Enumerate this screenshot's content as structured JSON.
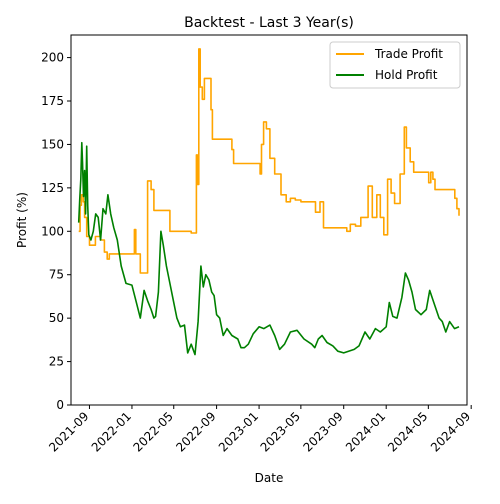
{
  "chart_data": {
    "type": "line",
    "title": "Backtest - Last 3 Year(s)",
    "xlabel": "Date",
    "ylabel": "Profit (%)",
    "x_type": "date",
    "xlim": [
      "2021-07-10",
      "2024-08-20"
    ],
    "ylim": [
      0,
      213
    ],
    "x_ticks": [
      "2021-09",
      "2022-01",
      "2022-05",
      "2022-09",
      "2023-01",
      "2023-05",
      "2023-09",
      "2024-01",
      "2024-05",
      "2024-09"
    ],
    "y_ticks": [
      0,
      25,
      50,
      75,
      100,
      125,
      150,
      175,
      200
    ],
    "grid": false,
    "legend_position": "top-right",
    "series": [
      {
        "name": "Trade Profit",
        "color": "#ffa500",
        "step": true,
        "points": [
          [
            "2021-08-01",
            100
          ],
          [
            "2021-08-05",
            115
          ],
          [
            "2021-08-09",
            121
          ],
          [
            "2021-08-14",
            117
          ],
          [
            "2021-08-18",
            108
          ],
          [
            "2021-08-24",
            97
          ],
          [
            "2021-09-01",
            92
          ],
          [
            "2021-09-18",
            97
          ],
          [
            "2021-10-02",
            95
          ],
          [
            "2021-10-14",
            88
          ],
          [
            "2021-10-22",
            84
          ],
          [
            "2021-10-28",
            87
          ],
          [
            "2021-11-15",
            87
          ],
          [
            "2021-12-10",
            87
          ],
          [
            "2022-01-01",
            87
          ],
          [
            "2022-01-08",
            101
          ],
          [
            "2022-01-12",
            87
          ],
          [
            "2022-01-25",
            76
          ],
          [
            "2022-02-15",
            129
          ],
          [
            "2022-02-25",
            124
          ],
          [
            "2022-03-05",
            112
          ],
          [
            "2022-04-10",
            112
          ],
          [
            "2022-04-20",
            100
          ],
          [
            "2022-06-20",
            99
          ],
          [
            "2022-07-05",
            144
          ],
          [
            "2022-07-08",
            127
          ],
          [
            "2022-07-12",
            205
          ],
          [
            "2022-07-16",
            183
          ],
          [
            "2022-07-22",
            176
          ],
          [
            "2022-07-28",
            188
          ],
          [
            "2022-08-16",
            170
          ],
          [
            "2022-08-20",
            153
          ],
          [
            "2022-10-15",
            147
          ],
          [
            "2022-10-20",
            139
          ],
          [
            "2023-01-01",
            139
          ],
          [
            "2023-01-04",
            133
          ],
          [
            "2023-01-08",
            150
          ],
          [
            "2023-01-14",
            163
          ],
          [
            "2023-01-22",
            159
          ],
          [
            "2023-02-01",
            142
          ],
          [
            "2023-02-15",
            133
          ],
          [
            "2023-03-05",
            121
          ],
          [
            "2023-03-20",
            117
          ],
          [
            "2023-04-01",
            119
          ],
          [
            "2023-04-15",
            118
          ],
          [
            "2023-05-01",
            117
          ],
          [
            "2023-06-01",
            117
          ],
          [
            "2023-06-12",
            111
          ],
          [
            "2023-06-25",
            117
          ],
          [
            "2023-07-05",
            102
          ],
          [
            "2023-09-01",
            102
          ],
          [
            "2023-09-10",
            100
          ],
          [
            "2023-09-20",
            104
          ],
          [
            "2023-10-05",
            103
          ],
          [
            "2023-10-20",
            108
          ],
          [
            "2023-11-10",
            126
          ],
          [
            "2023-11-22",
            108
          ],
          [
            "2023-12-05",
            121
          ],
          [
            "2023-12-15",
            108
          ],
          [
            "2023-12-25",
            98
          ],
          [
            "2024-01-05",
            130
          ],
          [
            "2024-01-15",
            122
          ],
          [
            "2024-01-25",
            116
          ],
          [
            "2024-02-10",
            133
          ],
          [
            "2024-02-22",
            160
          ],
          [
            "2024-02-28",
            148
          ],
          [
            "2024-03-10",
            140
          ],
          [
            "2024-03-20",
            134
          ],
          [
            "2024-04-25",
            134
          ],
          [
            "2024-05-02",
            128
          ],
          [
            "2024-05-08",
            134
          ],
          [
            "2024-05-14",
            130
          ],
          [
            "2024-05-20",
            124
          ],
          [
            "2024-07-10",
            124
          ],
          [
            "2024-07-16",
            119
          ],
          [
            "2024-07-22",
            113
          ],
          [
            "2024-07-28",
            109
          ]
        ]
      },
      {
        "name": "Hold Profit",
        "color": "#008000",
        "step": false,
        "points": [
          [
            "2021-08-01",
            105
          ],
          [
            "2021-08-04",
            118
          ],
          [
            "2021-08-07",
            130
          ],
          [
            "2021-08-10",
            151
          ],
          [
            "2021-08-12",
            140
          ],
          [
            "2021-08-15",
            120
          ],
          [
            "2021-08-18",
            135
          ],
          [
            "2021-08-21",
            110
          ],
          [
            "2021-08-24",
            149
          ],
          [
            "2021-08-27",
            115
          ],
          [
            "2021-08-30",
            98
          ],
          [
            "2021-09-05",
            95
          ],
          [
            "2021-09-12",
            100
          ],
          [
            "2021-09-19",
            110
          ],
          [
            "2021-09-26",
            108
          ],
          [
            "2021-10-03",
            95
          ],
          [
            "2021-10-10",
            113
          ],
          [
            "2021-10-18",
            110
          ],
          [
            "2021-10-24",
            121
          ],
          [
            "2021-11-01",
            110
          ],
          [
            "2021-11-10",
            102
          ],
          [
            "2021-11-20",
            95
          ],
          [
            "2021-12-01",
            80
          ],
          [
            "2021-12-15",
            70
          ],
          [
            "2022-01-01",
            69
          ],
          [
            "2022-01-15",
            58
          ],
          [
            "2022-01-25",
            50
          ],
          [
            "2022-02-05",
            66
          ],
          [
            "2022-02-15",
            60
          ],
          [
            "2022-02-25",
            55
          ],
          [
            "2022-03-05",
            50
          ],
          [
            "2022-03-10",
            51
          ],
          [
            "2022-03-18",
            65
          ],
          [
            "2022-03-25",
            100
          ],
          [
            "2022-04-01",
            92
          ],
          [
            "2022-04-10",
            80
          ],
          [
            "2022-04-20",
            70
          ],
          [
            "2022-04-30",
            60
          ],
          [
            "2022-05-10",
            50
          ],
          [
            "2022-05-20",
            45
          ],
          [
            "2022-06-01",
            46
          ],
          [
            "2022-06-10",
            30
          ],
          [
            "2022-06-20",
            35
          ],
          [
            "2022-07-01",
            29
          ],
          [
            "2022-07-10",
            48
          ],
          [
            "2022-07-18",
            80
          ],
          [
            "2022-07-25",
            68
          ],
          [
            "2022-08-01",
            75
          ],
          [
            "2022-08-10",
            72
          ],
          [
            "2022-08-18",
            65
          ],
          [
            "2022-08-25",
            63
          ],
          [
            "2022-09-01",
            52
          ],
          [
            "2022-09-10",
            50
          ],
          [
            "2022-09-20",
            40
          ],
          [
            "2022-10-01",
            44
          ],
          [
            "2022-10-15",
            40
          ],
          [
            "2022-11-01",
            38
          ],
          [
            "2022-11-10",
            33
          ],
          [
            "2022-11-20",
            33
          ],
          [
            "2022-12-01",
            35
          ],
          [
            "2022-12-15",
            41
          ],
          [
            "2023-01-01",
            45
          ],
          [
            "2023-01-15",
            44
          ],
          [
            "2023-02-01",
            46
          ],
          [
            "2023-02-15",
            40
          ],
          [
            "2023-03-01",
            32
          ],
          [
            "2023-03-15",
            35
          ],
          [
            "2023-04-01",
            42
          ],
          [
            "2023-04-20",
            43
          ],
          [
            "2023-05-10",
            38
          ],
          [
            "2023-06-01",
            35
          ],
          [
            "2023-06-10",
            33
          ],
          [
            "2023-06-20",
            38
          ],
          [
            "2023-07-01",
            40
          ],
          [
            "2023-07-15",
            36
          ],
          [
            "2023-08-01",
            34
          ],
          [
            "2023-08-15",
            31
          ],
          [
            "2023-09-01",
            30
          ],
          [
            "2023-09-15",
            31
          ],
          [
            "2023-10-01",
            32
          ],
          [
            "2023-10-15",
            34
          ],
          [
            "2023-11-01",
            42
          ],
          [
            "2023-11-15",
            38
          ],
          [
            "2023-12-01",
            44
          ],
          [
            "2023-12-15",
            42
          ],
          [
            "2024-01-01",
            45
          ],
          [
            "2024-01-10",
            59
          ],
          [
            "2024-01-20",
            51
          ],
          [
            "2024-02-01",
            50
          ],
          [
            "2024-02-15",
            62
          ],
          [
            "2024-02-25",
            76
          ],
          [
            "2024-03-05",
            72
          ],
          [
            "2024-03-15",
            65
          ],
          [
            "2024-03-25",
            55
          ],
          [
            "2024-04-10",
            52
          ],
          [
            "2024-04-25",
            55
          ],
          [
            "2024-05-05",
            66
          ],
          [
            "2024-05-15",
            60
          ],
          [
            "2024-06-01",
            50
          ],
          [
            "2024-06-10",
            48
          ],
          [
            "2024-06-20",
            42
          ],
          [
            "2024-07-01",
            48
          ],
          [
            "2024-07-15",
            44
          ],
          [
            "2024-07-28",
            45
          ]
        ]
      }
    ]
  }
}
